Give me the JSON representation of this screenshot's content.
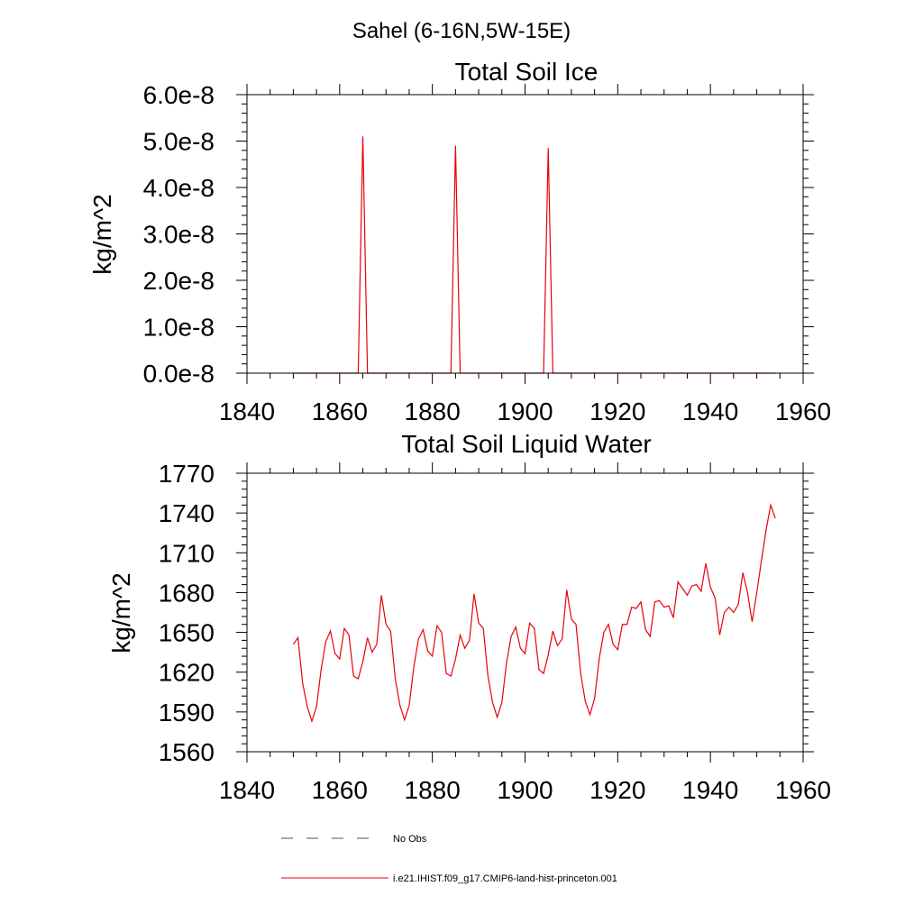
{
  "figure": {
    "suptitle": "Sahel (6-16N,5W-15E)"
  },
  "chart_data": [
    {
      "type": "line",
      "title": "Total Soil Ice",
      "xlabel": "",
      "ylabel": "kg/m^2",
      "xlim": [
        1840,
        1960
      ],
      "ylim": [
        0,
        6e-08
      ],
      "xticks": [
        "1840",
        "1860",
        "1880",
        "1900",
        "1920",
        "1940",
        "1960"
      ],
      "yticks": [
        "0.0e-8",
        "1.0e-8",
        "2.0e-8",
        "3.0e-8",
        "4.0e-8",
        "5.0e-8",
        "6.0e-8"
      ],
      "grid": false,
      "series": [
        {
          "color": "#e8000b",
          "x": [
            1850,
            1864,
            1865,
            1866,
            1884,
            1885,
            1886,
            1904,
            1905,
            1906,
            1954
          ],
          "y": [
            0,
            0,
            5.1e-08,
            0,
            0,
            4.9e-08,
            0,
            0,
            4.85e-08,
            0,
            0
          ]
        }
      ]
    },
    {
      "type": "line",
      "title": "Total Soil Liquid Water",
      "xlabel": "",
      "ylabel": "kg/m^2",
      "xlim": [
        1840,
        1960
      ],
      "ylim": [
        1560,
        1770
      ],
      "xticks": [
        "1840",
        "1860",
        "1880",
        "1900",
        "1920",
        "1940",
        "1960"
      ],
      "yticks": [
        "1560",
        "1590",
        "1620",
        "1650",
        "1680",
        "1710",
        "1740",
        "1770"
      ],
      "grid": false,
      "series": [
        {
          "color": "#e8000b",
          "x": [
            1850,
            1851,
            1852,
            1853,
            1854,
            1855,
            1856,
            1857,
            1858,
            1859,
            1860,
            1861,
            1862,
            1863,
            1864,
            1865,
            1866,
            1867,
            1868,
            1869,
            1870,
            1871,
            1872,
            1873,
            1874,
            1875,
            1876,
            1877,
            1878,
            1879,
            1880,
            1881,
            1882,
            1883,
            1884,
            1885,
            1886,
            1887,
            1888,
            1889,
            1890,
            1891,
            1892,
            1893,
            1894,
            1895,
            1896,
            1897,
            1898,
            1899,
            1900,
            1901,
            1902,
            1903,
            1904,
            1905,
            1906,
            1907,
            1908,
            1909,
            1910,
            1911,
            1912,
            1913,
            1914,
            1915,
            1916,
            1917,
            1918,
            1919,
            1920,
            1921,
            1922,
            1923,
            1924,
            1925,
            1926,
            1927,
            1928,
            1929,
            1930,
            1931,
            1932,
            1933,
            1934,
            1935,
            1936,
            1937,
            1938,
            1939,
            1940,
            1941,
            1942,
            1943,
            1944,
            1945,
            1946,
            1947,
            1948,
            1949,
            1950,
            1951,
            1952,
            1953,
            1954
          ],
          "y": [
            1641,
            1646,
            1612,
            1594,
            1583,
            1594,
            1622,
            1643,
            1651,
            1634,
            1630,
            1653,
            1648,
            1617,
            1615,
            1628,
            1646,
            1635,
            1641,
            1678,
            1656,
            1651,
            1615,
            1595,
            1584,
            1595,
            1624,
            1645,
            1652,
            1636,
            1632,
            1655,
            1650,
            1619,
            1617,
            1630,
            1648,
            1638,
            1644,
            1679,
            1657,
            1653,
            1617,
            1597,
            1586,
            1597,
            1627,
            1647,
            1654,
            1638,
            1634,
            1657,
            1653,
            1622,
            1619,
            1633,
            1651,
            1640,
            1645,
            1682,
            1660,
            1656,
            1619,
            1598,
            1588,
            1600,
            1630,
            1650,
            1656,
            1641,
            1637,
            1656,
            1656,
            1669,
            1668,
            1673,
            1652,
            1647,
            1673,
            1674,
            1669,
            1670,
            1661,
            1688,
            1683,
            1678,
            1685,
            1686,
            1681,
            1702,
            1684,
            1676,
            1648,
            1665,
            1669,
            1665,
            1671,
            1695,
            1680,
            1658,
            1680,
            1704,
            1727,
            1746,
            1736
          ]
        }
      ]
    }
  ],
  "legend": {
    "items": [
      {
        "label": "No Obs",
        "color": "#4a4f7a",
        "style": "dashed"
      },
      {
        "label": "i.e21.IHIST.f09_g17.CMIP6-land-hist-princeton.001",
        "color": "#e8000b",
        "style": "solid"
      }
    ]
  }
}
